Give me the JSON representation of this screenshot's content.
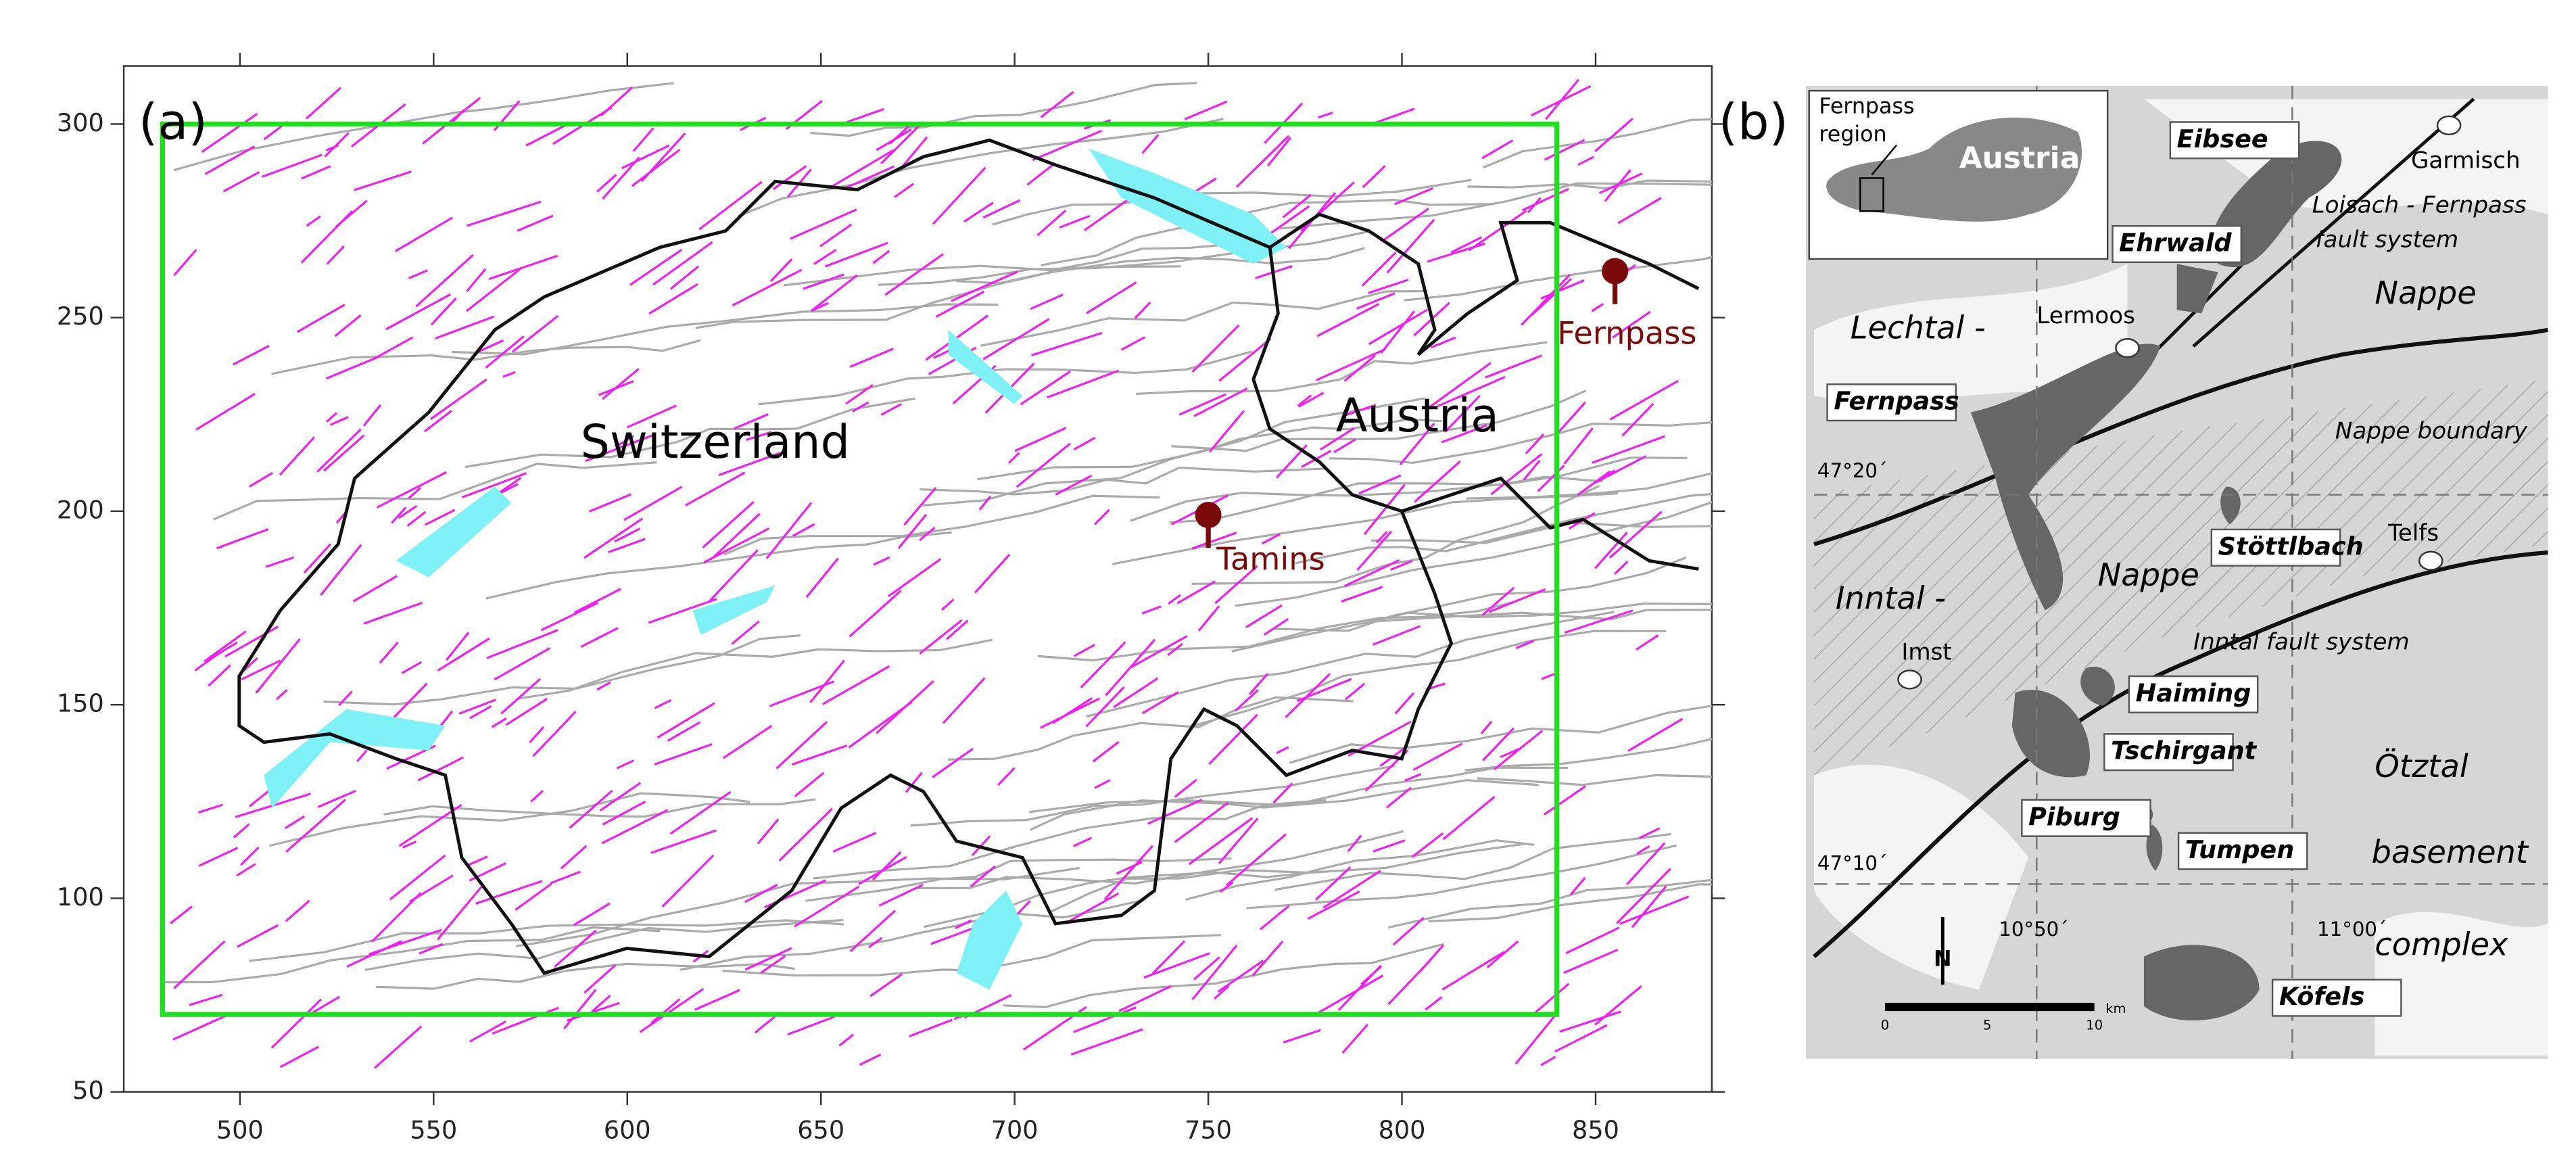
{
  "panel_a": {
    "label": "(a)",
    "xlim": [
      470,
      880
    ],
    "xticks": [
      500,
      550,
      600,
      650,
      700,
      750,
      800,
      850
    ],
    "ylim": [
      50,
      315
    ],
    "yticks": [
      50,
      100,
      150,
      200,
      250,
      300
    ],
    "box": {
      "x": [
        480,
        840
      ],
      "y": [
        70,
        300
      ],
      "color": "#22dd22"
    },
    "countries": [
      "Switzerland",
      "Austria"
    ],
    "markers": [
      {
        "name": "Tamins",
        "x": 750,
        "y": 199,
        "color": "#7a0a0a"
      },
      {
        "name": "Fernpass",
        "x": 855,
        "y": 262,
        "color": "#7a0a0a"
      }
    ]
  },
  "panel_b": {
    "label": "(b)",
    "inset": [
      "Fernpass",
      "region",
      "Austria"
    ],
    "sites": [
      "Eibsee",
      "Ehrwald",
      "Fernpass",
      "Stöttlbach",
      "Haiming",
      "Tschirgant",
      "Piburg",
      "Tumpen",
      "Köfels"
    ],
    "places": [
      "Garmisch",
      "Lermoos",
      "Telfs",
      "Imst"
    ],
    "units": [
      "Loisach - Fernpass",
      "fault system",
      "Nappe",
      "Lechtal -",
      "Nappe boundary",
      "Inntal -",
      "Nappe",
      "Inntal fault system",
      "Ötztal",
      "basement",
      "complex"
    ],
    "coords": [
      "47°20´",
      "47°10´",
      "10°50´",
      "11°00´"
    ],
    "north": "N",
    "scale": [
      "0",
      "5",
      "10",
      "km"
    ]
  }
}
